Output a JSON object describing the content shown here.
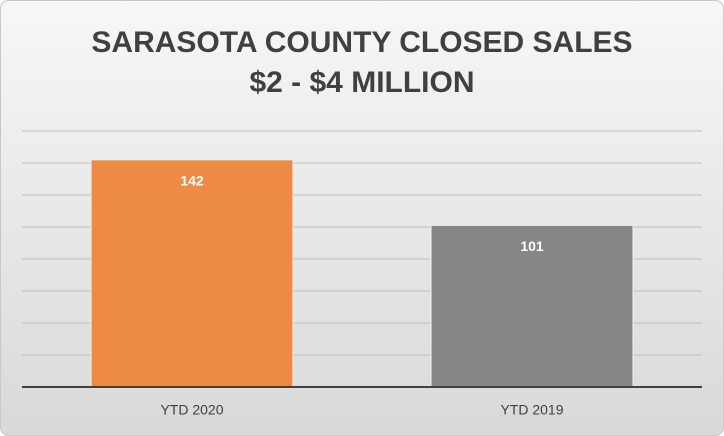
{
  "chart_data": {
    "type": "bar",
    "title": [
      "SARASOTA COUNTY CLOSED SALES",
      "$2 - $4 MILLION"
    ],
    "categories": [
      "YTD 2020",
      "YTD 2019"
    ],
    "values": [
      142,
      101
    ],
    "colors": [
      "#ed8b45",
      "#868686"
    ],
    "ylim": [
      0,
      160
    ],
    "yticks": [
      0,
      20,
      40,
      60,
      80,
      100,
      120,
      140,
      160
    ],
    "grid": true
  }
}
